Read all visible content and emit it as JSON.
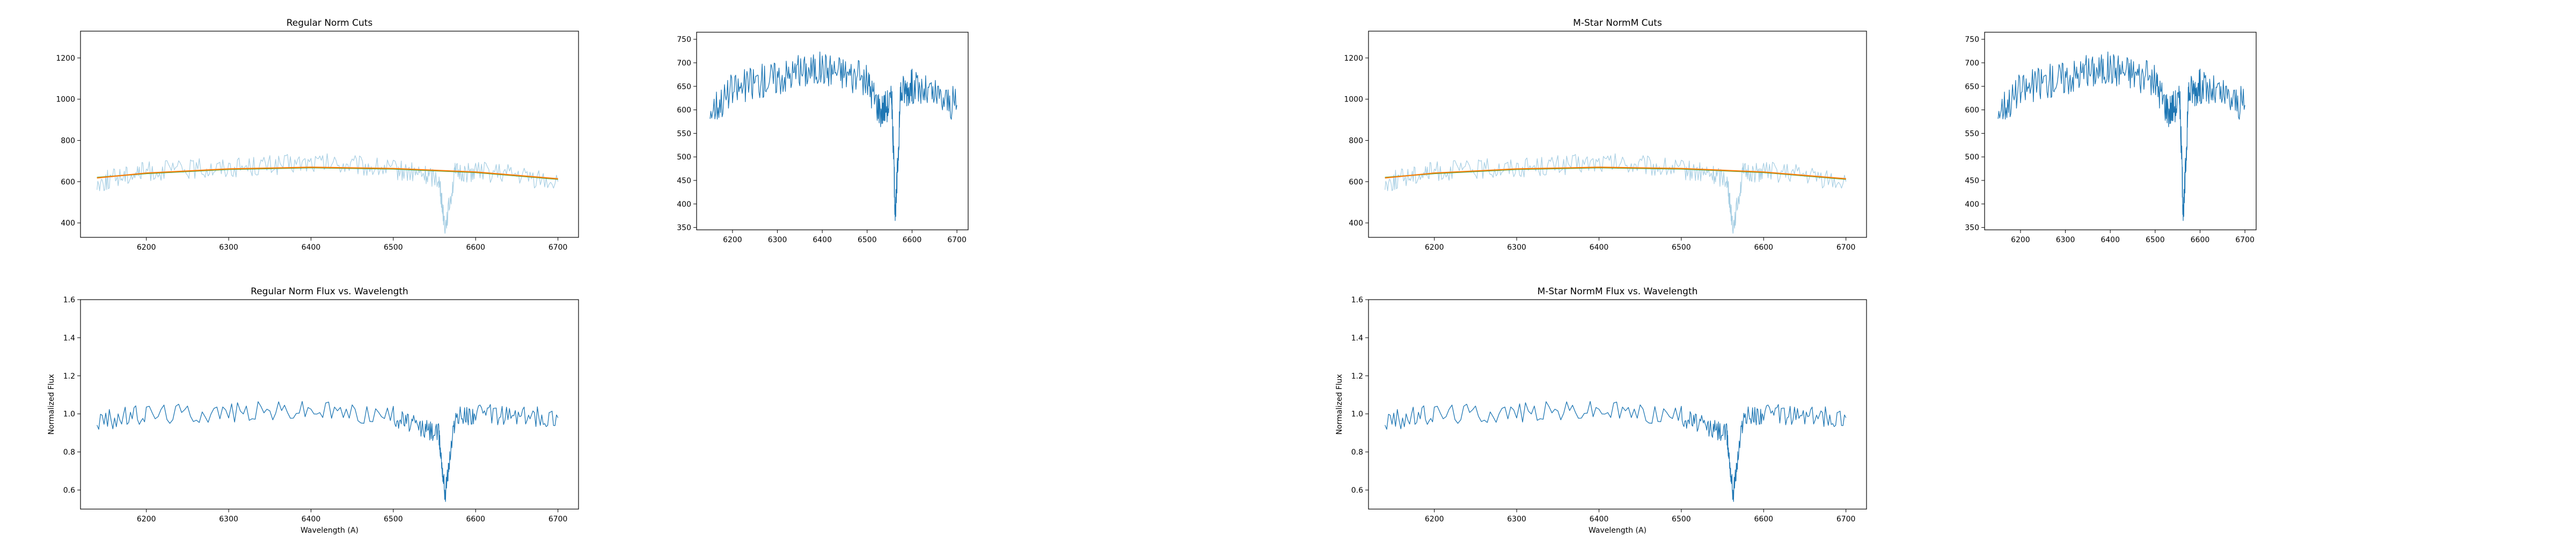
{
  "panels": [
    {
      "top_left": {
        "title": "Regular Norm Cuts",
        "xlim": [
          6120,
          6725
        ],
        "ylim": [
          330,
          1330
        ],
        "xticks": [
          6200,
          6300,
          6400,
          6500,
          6600,
          6700
        ],
        "yticks": [
          400,
          600,
          800,
          1000,
          1200
        ],
        "xlabel": "",
        "ylabel": ""
      },
      "top_right": {
        "title": "",
        "xlim": [
          6120,
          6725
        ],
        "ylim": [
          345,
          765
        ],
        "xticks": [
          6200,
          6300,
          6400,
          6500,
          6600,
          6700
        ],
        "yticks": [
          350,
          400,
          450,
          500,
          550,
          600,
          650,
          700,
          750
        ],
        "xlabel": "",
        "ylabel": ""
      },
      "bottom_left": {
        "title": "Regular Norm Flux vs. Wavelength",
        "xlim": [
          6120,
          6725
        ],
        "ylim": [
          0.5,
          1.6
        ],
        "xticks": [
          6200,
          6300,
          6400,
          6500,
          6600,
          6700
        ],
        "yticks": [
          "0.6",
          "0.8",
          "1.0",
          "1.2",
          "1.4",
          "1.6"
        ],
        "xlabel": "Wavelength (A)",
        "ylabel": "Normalized Flux"
      }
    },
    {
      "top_left": {
        "title": "M-Star NormM Cuts",
        "xlim": [
          6120,
          6725
        ],
        "ylim": [
          330,
          1330
        ],
        "xticks": [
          6200,
          6300,
          6400,
          6500,
          6600,
          6700
        ],
        "yticks": [
          400,
          600,
          800,
          1000,
          1200
        ],
        "xlabel": "",
        "ylabel": ""
      },
      "top_right": {
        "title": "",
        "xlim": [
          6120,
          6725
        ],
        "ylim": [
          345,
          765
        ],
        "xticks": [
          6200,
          6300,
          6400,
          6500,
          6600,
          6700
        ],
        "yticks": [
          350,
          400,
          450,
          500,
          550,
          600,
          650,
          700,
          750
        ],
        "xlabel": "",
        "ylabel": ""
      },
      "bottom_left": {
        "title": "M-Star NormM Flux vs. Wavelength",
        "xlim": [
          6120,
          6725
        ],
        "ylim": [
          0.5,
          1.6
        ],
        "xticks": [
          6200,
          6300,
          6400,
          6500,
          6600,
          6700
        ],
        "yticks": [
          "0.6",
          "0.8",
          "1.0",
          "1.2",
          "1.4",
          "1.6"
        ],
        "xlabel": "Wavelength (A)",
        "ylabel": "Normalized Flux"
      }
    }
  ],
  "chart_data": [
    {
      "type": "line",
      "title": "Regular Norm Cuts",
      "series": [
        {
          "color": "#a6cee3",
          "x": [
            6140,
            6170,
            6200,
            6250,
            6300,
            6350,
            6400,
            6450,
            6500,
            6530,
            6555,
            6563,
            6575,
            6600,
            6650,
            6700
          ],
          "y": [
            590,
            630,
            650,
            660,
            670,
            680,
            690,
            680,
            660,
            640,
            620,
            380,
            640,
            650,
            630,
            600
          ]
        },
        {
          "color": "#33a02c",
          "x": [
            6140,
            6200,
            6300,
            6400,
            6500,
            6600,
            6700
          ],
          "y": [
            620,
            640,
            660,
            668,
            662,
            645,
            612
          ]
        },
        {
          "color": "#ff7f0e",
          "x": [
            6140,
            6200,
            6300,
            6400,
            6500,
            6600,
            6700
          ],
          "y": [
            618,
            642,
            662,
            670,
            664,
            647,
            614
          ]
        }
      ]
    },
    {
      "type": "line",
      "title": "",
      "series": [
        {
          "color": "#1f77b4",
          "x": [
            6150,
            6200,
            6250,
            6300,
            6350,
            6400,
            6450,
            6500,
            6530,
            6555,
            6563,
            6575,
            6600,
            6650,
            6700
          ],
          "y": [
            600,
            640,
            660,
            670,
            680,
            690,
            680,
            660,
            600,
            620,
            370,
            640,
            650,
            630,
            610
          ]
        }
      ]
    },
    {
      "type": "line",
      "title": "Regular Norm Flux vs. Wavelength",
      "xlabel": "Wavelength (A)",
      "ylabel": "Normalized Flux",
      "series": [
        {
          "color": "#1f77b4",
          "x": [
            6140,
            6200,
            6300,
            6400,
            6500,
            6530,
            6555,
            6563,
            6575,
            6600,
            6650,
            6700
          ],
          "y": [
            0.96,
            1.0,
            1.01,
            1.02,
            0.99,
            0.93,
            0.9,
            0.58,
            0.98,
            1.0,
            0.99,
            0.98
          ]
        }
      ]
    },
    {
      "type": "line",
      "title": "M-Star NormM Cuts",
      "series": [
        {
          "color": "#a6cee3",
          "x": [
            6140,
            6170,
            6200,
            6250,
            6300,
            6350,
            6400,
            6450,
            6500,
            6530,
            6555,
            6563,
            6575,
            6600,
            6650,
            6700
          ],
          "y": [
            590,
            630,
            650,
            660,
            670,
            680,
            690,
            680,
            660,
            640,
            620,
            380,
            640,
            650,
            630,
            600
          ]
        },
        {
          "color": "#33a02c",
          "x": [
            6140,
            6200,
            6300,
            6400,
            6500,
            6600,
            6700
          ],
          "y": [
            620,
            640,
            660,
            668,
            662,
            645,
            612
          ]
        },
        {
          "color": "#ff7f0e",
          "x": [
            6140,
            6200,
            6300,
            6400,
            6500,
            6600,
            6700
          ],
          "y": [
            618,
            642,
            662,
            670,
            664,
            647,
            614
          ]
        }
      ]
    },
    {
      "type": "line",
      "title": "",
      "series": [
        {
          "color": "#1f77b4",
          "x": [
            6150,
            6200,
            6250,
            6300,
            6350,
            6400,
            6450,
            6500,
            6530,
            6555,
            6563,
            6575,
            6600,
            6650,
            6700
          ],
          "y": [
            600,
            640,
            660,
            670,
            680,
            690,
            680,
            660,
            600,
            620,
            370,
            640,
            650,
            630,
            610
          ]
        }
      ]
    },
    {
      "type": "line",
      "title": "M-Star NormM Flux vs. Wavelength",
      "xlabel": "Wavelength (A)",
      "ylabel": "Normalized Flux",
      "series": [
        {
          "color": "#1f77b4",
          "x": [
            6140,
            6200,
            6300,
            6400,
            6500,
            6530,
            6555,
            6563,
            6575,
            6600,
            6650,
            6700
          ],
          "y": [
            0.96,
            1.0,
            1.01,
            1.02,
            0.99,
            0.93,
            0.9,
            0.58,
            0.98,
            1.0,
            0.99,
            0.98
          ]
        }
      ]
    }
  ]
}
